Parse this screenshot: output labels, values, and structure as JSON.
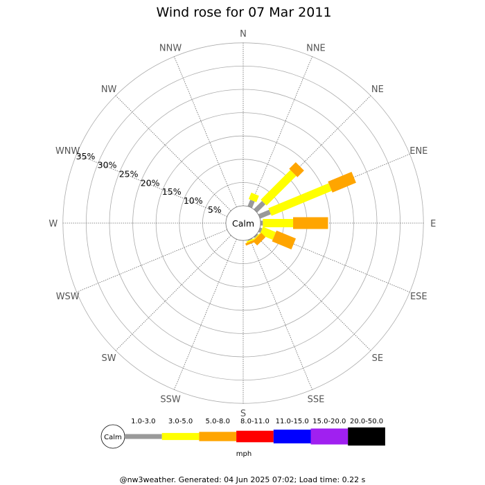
{
  "chart_data": {
    "type": "wind-rose",
    "title": "Wind rose for 07 Mar 2011",
    "directions": [
      "N",
      "NNE",
      "NE",
      "ENE",
      "E",
      "ESE",
      "SE",
      "SSE",
      "S",
      "SSW",
      "SW",
      "WSW",
      "W",
      "WNW",
      "NW",
      "NNW"
    ],
    "radial_ticks": [
      "5%",
      "10%",
      "15%",
      "20%",
      "25%",
      "30%",
      "35%"
    ],
    "radial_max_percent": 35,
    "calm_label": "Calm",
    "speed_bins": [
      {
        "label": "1.0-3.0",
        "color": "#999999"
      },
      {
        "label": "3.0-5.0",
        "color": "#ffff00"
      },
      {
        "label": "5.0-8.0",
        "color": "#ffa500"
      },
      {
        "label": "8.0-11.0",
        "color": "#ff0000"
      },
      {
        "label": "11.0-15.0",
        "color": "#0000ff"
      },
      {
        "label": "15.0-20.0",
        "color": "#a020f0"
      },
      {
        "label": "20.0-50.0",
        "color": "#000000"
      }
    ],
    "series": [
      {
        "direction": "NNE",
        "values": [
          1.5,
          1.5,
          0,
          0,
          0,
          0,
          0
        ]
      },
      {
        "direction": "NE",
        "values": [
          2.5,
          9.0,
          2.0,
          0,
          0,
          0,
          0
        ]
      },
      {
        "direction": "ENE",
        "values": [
          2.5,
          14.0,
          5.5,
          0,
          0,
          0,
          0
        ]
      },
      {
        "direction": "E",
        "values": [
          0.5,
          6.5,
          7.5,
          0,
          0,
          0,
          0
        ]
      },
      {
        "direction": "ESE",
        "values": [
          0.5,
          3.0,
          4.5,
          0,
          0,
          0,
          0
        ]
      },
      {
        "direction": "SE",
        "values": [
          0.3,
          0.2,
          1.3,
          0,
          0,
          0,
          0
        ]
      },
      {
        "direction": "SSE",
        "values": [
          0.2,
          0.3,
          0.5,
          0,
          0,
          0,
          0
        ]
      }
    ],
    "legend_unit": "mph"
  },
  "footer": "@nw3weather. Generated: 04 Jun 2025 07:02; Load time: 0.22 s"
}
